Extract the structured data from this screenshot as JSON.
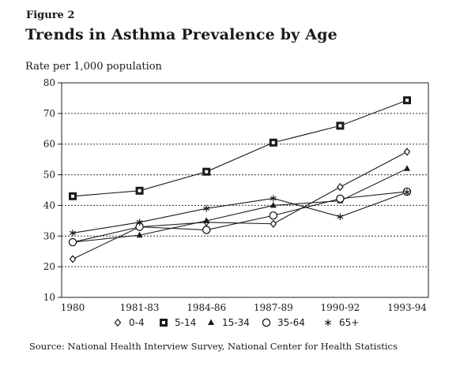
{
  "figure_label": "Figure 2",
  "chart_data": {
    "type": "line",
    "title": "Trends in Asthma Prevalence by Age",
    "ylabel": "Rate per 1,000 population",
    "xlabel": "",
    "categories": [
      "1980",
      "1981-83",
      "1984-86",
      "1987-89",
      "1990-92",
      "1993-94"
    ],
    "ylim": [
      10,
      80
    ],
    "yticks": [
      10,
      20,
      30,
      40,
      50,
      60,
      70,
      80
    ],
    "grid": "horizontal dotted",
    "legend_position": "bottom",
    "series": [
      {
        "name": "0-4",
        "marker": "open-diamond",
        "values": [
          22.5,
          33.0,
          34.5,
          34.0,
          46.0,
          57.5
        ]
      },
      {
        "name": "5-14",
        "marker": "filled-square",
        "values": [
          43.0,
          44.8,
          51.0,
          60.5,
          66.0,
          74.3
        ]
      },
      {
        "name": "15-34",
        "marker": "filled-triangle",
        "values": [
          28.0,
          30.3,
          35.0,
          40.0,
          41.5,
          52.0
        ]
      },
      {
        "name": "35-64",
        "marker": "open-circle",
        "values": [
          28.0,
          33.0,
          32.0,
          36.7,
          42.2,
          44.5
        ]
      },
      {
        "name": "65+",
        "marker": "asterisk",
        "values": [
          31.0,
          34.5,
          39.0,
          42.3,
          36.3,
          44.3
        ]
      }
    ]
  },
  "source": "Source: National Health Interview Survey, National Center for Health Statistics"
}
